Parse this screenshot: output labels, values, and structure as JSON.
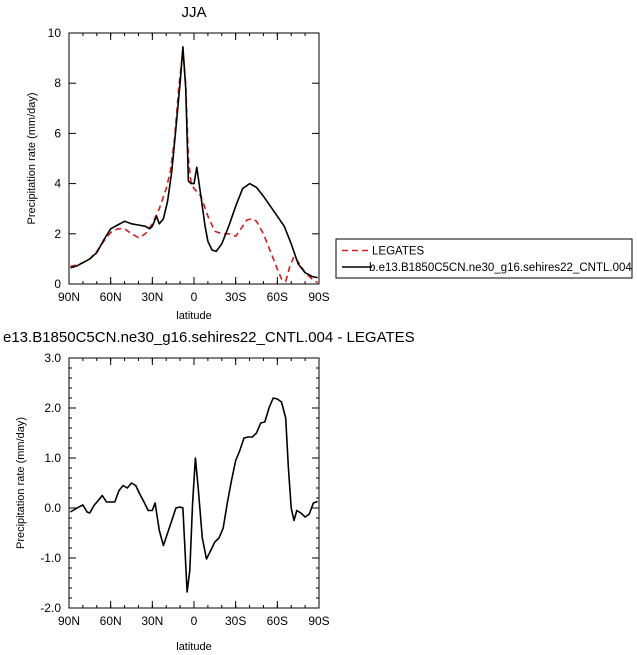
{
  "chart_data": [
    {
      "type": "line",
      "title": "JJA",
      "xlabel": "latitude",
      "ylabel": "Precipitation rate (mm/day)",
      "xlim": [
        90,
        -90
      ],
      "ylim": [
        0,
        10
      ],
      "xticks": [
        {
          "value": 90,
          "label": "90N"
        },
        {
          "value": 60,
          "label": "60N"
        },
        {
          "value": 30,
          "label": "30N"
        },
        {
          "value": 0,
          "label": "0"
        },
        {
          "value": -30,
          "label": "30S"
        },
        {
          "value": -60,
          "label": "60S"
        },
        {
          "value": -90,
          "label": "90S"
        }
      ],
      "yticks": [
        {
          "value": 0,
          "label": "0"
        },
        {
          "value": 2,
          "label": "2"
        },
        {
          "value": 4,
          "label": "4"
        },
        {
          "value": 6,
          "label": "6"
        },
        {
          "value": 8,
          "label": "8"
        },
        {
          "value": 10,
          "label": "10"
        }
      ],
      "legend": {
        "placement": "right"
      },
      "series": [
        {
          "name": "LEGATES",
          "color": "#d11f1f",
          "dash": "dashed",
          "points": [
            [
              89,
              0.7
            ],
            [
              85,
              0.75
            ],
            [
              80,
              0.85
            ],
            [
              75,
              1.0
            ],
            [
              70,
              1.3
            ],
            [
              65,
              1.7
            ],
            [
              60,
              2.05
            ],
            [
              55,
              2.2
            ],
            [
              50,
              2.2
            ],
            [
              45,
              2.0
            ],
            [
              40,
              1.85
            ],
            [
              35,
              2.0
            ],
            [
              30,
              2.4
            ],
            [
              25,
              3.0
            ],
            [
              20,
              3.8
            ],
            [
              17,
              4.5
            ],
            [
              14,
              5.8
            ],
            [
              11,
              7.8
            ],
            [
              8,
              9.3
            ],
            [
              6,
              8.0
            ],
            [
              4,
              5.0
            ],
            [
              2,
              4.0
            ],
            [
              0,
              3.8
            ],
            [
              -5,
              3.5
            ],
            [
              -10,
              2.7
            ],
            [
              -15,
              2.1
            ],
            [
              -20,
              2.0
            ],
            [
              -25,
              2.0
            ],
            [
              -30,
              1.9
            ],
            [
              -35,
              2.3
            ],
            [
              -38,
              2.55
            ],
            [
              -42,
              2.6
            ],
            [
              -45,
              2.5
            ],
            [
              -50,
              2.0
            ],
            [
              -55,
              1.3
            ],
            [
              -60,
              0.6
            ],
            [
              -63,
              0.2
            ],
            [
              -66,
              0.1
            ],
            [
              -69,
              0.7
            ],
            [
              -72,
              1.1
            ],
            [
              -76,
              0.8
            ],
            [
              -80,
              0.45
            ],
            [
              -85,
              0.2
            ],
            [
              -89,
              0.05
            ]
          ]
        },
        {
          "name": "b.e13.B1850C5CN.ne30_g16.sehires22_CNTL.004",
          "color": "#000000",
          "dash": "solid",
          "points": [
            [
              89,
              0.65
            ],
            [
              85,
              0.7
            ],
            [
              80,
              0.85
            ],
            [
              75,
              1.0
            ],
            [
              70,
              1.25
            ],
            [
              65,
              1.75
            ],
            [
              60,
              2.2
            ],
            [
              55,
              2.35
            ],
            [
              50,
              2.5
            ],
            [
              45,
              2.4
            ],
            [
              40,
              2.35
            ],
            [
              35,
              2.3
            ],
            [
              32,
              2.2
            ],
            [
              30,
              2.3
            ],
            [
              27,
              2.7
            ],
            [
              25,
              2.4
            ],
            [
              22,
              2.6
            ],
            [
              19,
              3.3
            ],
            [
              16,
              4.5
            ],
            [
              13,
              6.2
            ],
            [
              10,
              8.0
            ],
            [
              8,
              9.45
            ],
            [
              6,
              7.8
            ],
            [
              4,
              4.1
            ],
            [
              2,
              4.0
            ],
            [
              0,
              4.0
            ],
            [
              -2,
              4.65
            ],
            [
              -5,
              3.5
            ],
            [
              -8,
              2.3
            ],
            [
              -10,
              1.7
            ],
            [
              -13,
              1.35
            ],
            [
              -16,
              1.3
            ],
            [
              -20,
              1.6
            ],
            [
              -25,
              2.3
            ],
            [
              -30,
              3.1
            ],
            [
              -35,
              3.8
            ],
            [
              -40,
              4.0
            ],
            [
              -45,
              3.85
            ],
            [
              -50,
              3.5
            ],
            [
              -55,
              3.1
            ],
            [
              -60,
              2.7
            ],
            [
              -65,
              2.3
            ],
            [
              -70,
              1.6
            ],
            [
              -75,
              0.8
            ],
            [
              -80,
              0.45
            ],
            [
              -85,
              0.3
            ],
            [
              -89,
              0.25
            ]
          ]
        }
      ]
    },
    {
      "type": "line",
      "title": "e13.B1850C5CN.ne30_g16.sehires22_CNTL.004 - LEGATES",
      "xlabel": "latitude",
      "ylabel": "Precipitation rate (mm/day)",
      "xlim": [
        90,
        -90
      ],
      "ylim": [
        -2.0,
        3.0
      ],
      "xticks": [
        {
          "value": 90,
          "label": "90N"
        },
        {
          "value": 60,
          "label": "60N"
        },
        {
          "value": 30,
          "label": "30N"
        },
        {
          "value": 0,
          "label": "0"
        },
        {
          "value": -30,
          "label": "30S"
        },
        {
          "value": -60,
          "label": "60S"
        },
        {
          "value": -90,
          "label": "90S"
        }
      ],
      "yticks": [
        {
          "value": -2.0,
          "label": "-2.0"
        },
        {
          "value": -1.0,
          "label": "-1.0"
        },
        {
          "value": 0.0,
          "label": "0.0"
        },
        {
          "value": 1.0,
          "label": "1.0"
        },
        {
          "value": 2.0,
          "label": "2.0"
        },
        {
          "value": 3.0,
          "label": "3.0"
        }
      ],
      "series": [
        {
          "color": "#000000",
          "dash": "solid",
          "points": [
            [
              89,
              -0.08
            ],
            [
              86,
              -0.03
            ],
            [
              83,
              0.02
            ],
            [
              80,
              0.06
            ],
            [
              77,
              -0.08
            ],
            [
              75,
              -0.1
            ],
            [
              72,
              0.05
            ],
            [
              69,
              0.15
            ],
            [
              66,
              0.25
            ],
            [
              63,
              0.12
            ],
            [
              60,
              0.12
            ],
            [
              57,
              0.12
            ],
            [
              54,
              0.35
            ],
            [
              51,
              0.45
            ],
            [
              48,
              0.4
            ],
            [
              45,
              0.5
            ],
            [
              42,
              0.45
            ],
            [
              39,
              0.28
            ],
            [
              36,
              0.12
            ],
            [
              33,
              -0.05
            ],
            [
              30,
              -0.05
            ],
            [
              28,
              0.1
            ],
            [
              25,
              -0.45
            ],
            [
              22,
              -0.75
            ],
            [
              19,
              -0.5
            ],
            [
              16,
              -0.25
            ],
            [
              13,
              0.0
            ],
            [
              10,
              0.02
            ],
            [
              8,
              0.0
            ],
            [
              5,
              -1.68
            ],
            [
              3,
              -1.25
            ],
            [
              1,
              0.1
            ],
            [
              -1,
              1.0
            ],
            [
              -3,
              0.4
            ],
            [
              -6,
              -0.6
            ],
            [
              -9,
              -1.02
            ],
            [
              -12,
              -0.85
            ],
            [
              -15,
              -0.68
            ],
            [
              -18,
              -0.6
            ],
            [
              -21,
              -0.4
            ],
            [
              -24,
              0.1
            ],
            [
              -27,
              0.55
            ],
            [
              -30,
              0.95
            ],
            [
              -33,
              1.15
            ],
            [
              -36,
              1.4
            ],
            [
              -39,
              1.42
            ],
            [
              -42,
              1.42
            ],
            [
              -45,
              1.5
            ],
            [
              -48,
              1.7
            ],
            [
              -51,
              1.72
            ],
            [
              -54,
              2.0
            ],
            [
              -57,
              2.2
            ],
            [
              -60,
              2.18
            ],
            [
              -63,
              2.12
            ],
            [
              -66,
              1.8
            ],
            [
              -68,
              0.8
            ],
            [
              -70,
              0.0
            ],
            [
              -72,
              -0.25
            ],
            [
              -74,
              -0.05
            ],
            [
              -77,
              -0.1
            ],
            [
              -80,
              -0.18
            ],
            [
              -83,
              -0.12
            ],
            [
              -86,
              0.1
            ],
            [
              -89,
              0.13
            ]
          ]
        }
      ]
    }
  ]
}
